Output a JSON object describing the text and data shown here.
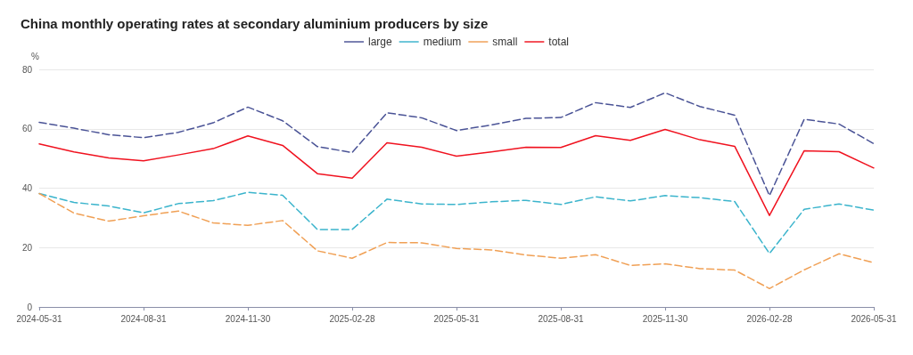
{
  "chart_data": {
    "type": "line",
    "title": "China monthly operating rates at secondary aluminium producers by size",
    "ylabel": "%",
    "categories": [
      "2024-05-31",
      null,
      null,
      "2024-08-31",
      null,
      null,
      "2024-11-30",
      null,
      null,
      "2025-02-28",
      null,
      null,
      "2025-05-31",
      null,
      null,
      "2025-08-31",
      null,
      null,
      "2025-11-30",
      null,
      null,
      "2026-02-28",
      null,
      null,
      "2026-05-31"
    ],
    "series": [
      {
        "name": "large",
        "color": "#4a5396",
        "line_style": "dashed",
        "values": [
          62.2,
          60.2,
          58,
          57,
          58.8,
          62,
          67.3,
          62.7,
          54,
          52,
          65.4,
          63.7,
          59.4,
          61.3,
          63.5,
          63.8,
          68.8,
          67.2,
          72.1,
          67.5,
          64.6,
          37.5,
          63.2,
          61.6,
          55
        ]
      },
      {
        "name": "medium",
        "color": "#3bb4cc",
        "line_style": "dashed",
        "values": [
          38.2,
          35.2,
          34,
          31.7,
          34.8,
          35.8,
          38.6,
          37.6,
          26.1,
          26.1,
          36.3,
          34.7,
          34.5,
          35.4,
          35.9,
          34.5,
          37.1,
          35.7,
          37.5,
          36.8,
          35.5,
          18,
          32.9,
          34.7,
          32.6
        ]
      },
      {
        "name": "small",
        "color": "#f0a055",
        "line_style": "dashed",
        "values": [
          38.2,
          31.6,
          28.9,
          30.7,
          32.3,
          28.3,
          27.5,
          29.1,
          18.9,
          16.4,
          21.7,
          21.6,
          19.7,
          19.2,
          17.5,
          16.4,
          17.6,
          14,
          14.5,
          12.9,
          12.4,
          6.2,
          12.5,
          17.9,
          14.9
        ]
      },
      {
        "name": "total",
        "color": "#f0121f",
        "line_style": "solid",
        "values": [
          54.9,
          52.2,
          50.2,
          49.2,
          51.2,
          53.3,
          57.6,
          54.4,
          44.9,
          43.4,
          55.3,
          53.8,
          50.8,
          52.2,
          53.8,
          53.7,
          57.7,
          56.1,
          59.8,
          56.3,
          54.1,
          30.8,
          52.6,
          52.3,
          46.8
        ]
      }
    ],
    "ylim": [
      0,
      80
    ],
    "yticks": [
      0,
      20,
      40,
      60,
      80
    ],
    "grid": "y",
    "legend": "top",
    "marker": "none"
  }
}
